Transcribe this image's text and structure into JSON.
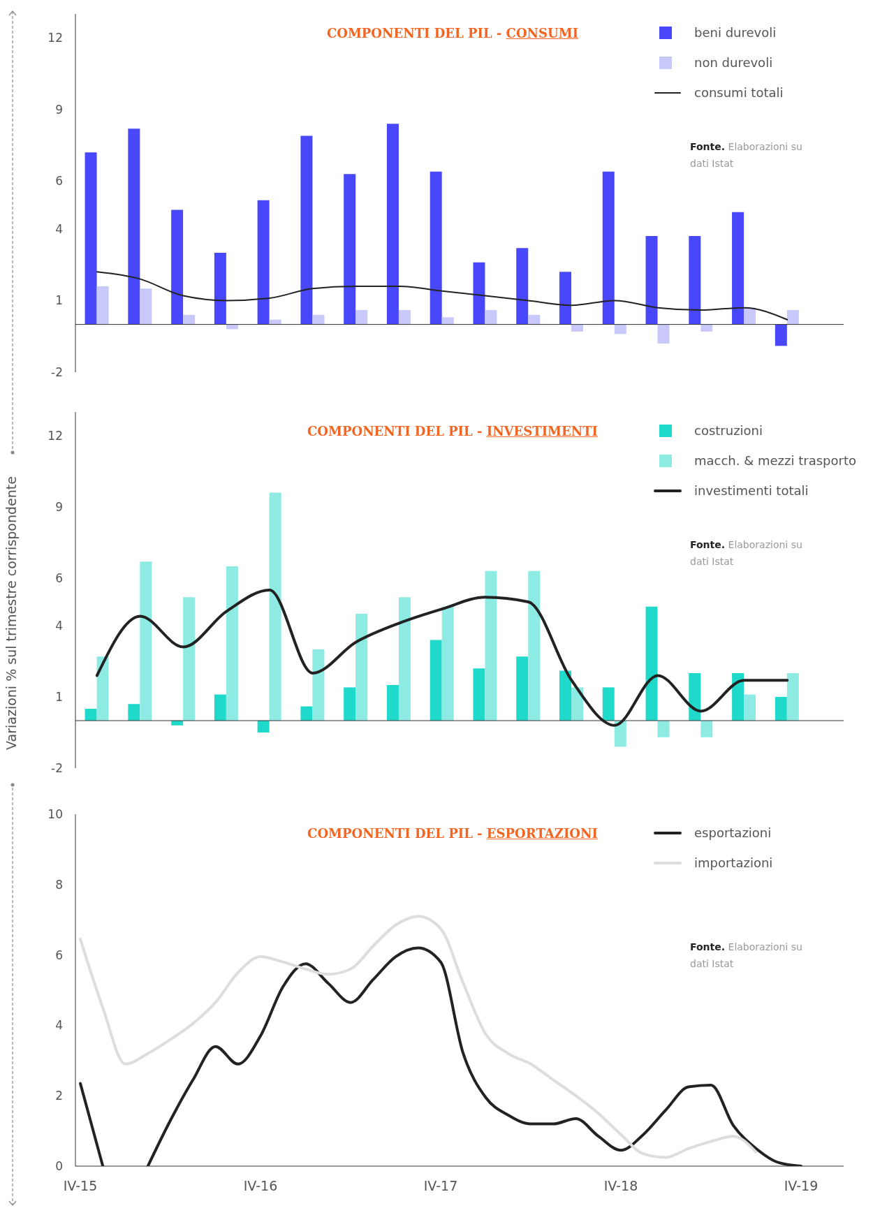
{
  "chart_data": [
    {
      "type": "bar",
      "title": "COMPONENTI DEL PIL - CONSUMI",
      "categories": [
        null,
        null,
        null,
        null,
        null,
        null,
        null,
        null,
        null,
        null,
        null,
        null,
        null,
        null,
        null,
        null,
        null
      ],
      "series": [
        {
          "name": "beni durevoli",
          "color": "#4848fa",
          "values": [
            7.2,
            8.2,
            4.8,
            3.0,
            5.2,
            7.9,
            6.3,
            8.4,
            6.4,
            2.6,
            3.2,
            2.2,
            6.4,
            3.7,
            3.7,
            4.7,
            -0.9
          ]
        },
        {
          "name": "non durevoli",
          "color": "#c8c8fa",
          "values": [
            1.6,
            1.5,
            0.4,
            -0.2,
            0.2,
            0.4,
            0.6,
            0.6,
            0.3,
            0.6,
            0.4,
            -0.3,
            -0.4,
            -0.8,
            -0.3,
            0.7,
            0.6
          ]
        },
        {
          "name": "consumi totali",
          "type": "line",
          "color": "#222222",
          "values": [
            2.2,
            1.9,
            1.2,
            1.0,
            1.1,
            1.5,
            1.6,
            1.6,
            1.4,
            1.2,
            1.0,
            0.8,
            1.0,
            0.7,
            0.6,
            0.7,
            0.2
          ]
        }
      ],
      "ylim": [
        -2,
        13
      ],
      "yticks": [
        -2,
        1,
        4,
        6,
        9,
        12
      ],
      "ref_lines": [
        {
          "axis": "y",
          "value": 0
        }
      ],
      "tick_labels": "y",
      "legend": "top right",
      "annotations": [
        "Fonte. Elaborazioni su dati Istat"
      ]
    },
    {
      "type": "bar",
      "title": "COMPONENTI DEL PIL - INVESTIMENTI",
      "ylabel": "Variazioni % sul trimestre corrispondente",
      "categories": [
        null,
        null,
        null,
        null,
        null,
        null,
        null,
        null,
        null,
        null,
        null,
        null,
        null,
        null,
        null,
        null,
        null
      ],
      "series": [
        {
          "name": "costruzioni",
          "color": "#1fdacb",
          "values": [
            0.5,
            0.7,
            -0.2,
            1.1,
            -0.5,
            0.6,
            1.4,
            1.5,
            3.4,
            2.2,
            2.7,
            2.1,
            1.4,
            4.8,
            2.0,
            2.0,
            1.0
          ]
        },
        {
          "name": "macch. & mezzi trasporto",
          "color": "#8eebe4",
          "values": [
            2.7,
            6.7,
            5.2,
            6.5,
            9.6,
            3.0,
            4.5,
            5.2,
            4.8,
            6.3,
            6.3,
            1.4,
            -1.1,
            -0.7,
            -0.7,
            1.1,
            2.0
          ]
        },
        {
          "name": "investimenti totali",
          "type": "line",
          "color": "#222222",
          "values": [
            1.9,
            4.4,
            3.1,
            4.6,
            5.5,
            2.0,
            3.3,
            4.1,
            4.7,
            5.2,
            5.0,
            1.7,
            -0.2,
            1.9,
            0.4,
            1.7,
            1.7
          ]
        }
      ],
      "ylim": [
        -2,
        13
      ],
      "yticks": [
        -2,
        1,
        4,
        6,
        9,
        12
      ],
      "ref_lines": [
        {
          "axis": "y",
          "value": 0
        }
      ],
      "tick_labels": "y",
      "legend": "top right",
      "annotations": [
        "Fonte. Elaborazioni su dati Istat"
      ]
    },
    {
      "type": "line",
      "title": "COMPONENTI DEL PIL - ESPORTAZIONI",
      "categories": [
        "IV-15",
        null,
        null,
        null,
        null,
        null,
        null,
        null,
        "IV-16",
        null,
        null,
        null,
        null,
        null,
        null,
        null,
        "IV-17",
        null,
        null,
        null,
        null,
        null,
        null,
        null,
        "IV-18",
        null,
        null,
        null,
        null,
        null,
        null,
        null,
        "IV-19"
      ],
      "series": [
        {
          "name": "esportazioni",
          "color": "#222222",
          "values": [
            2.35,
            0,
            null,
            0,
            1.3,
            2.45,
            3.4,
            2.9,
            3.7,
            5.1,
            5.75,
            5.2,
            4.65,
            5.3,
            5.95,
            6.2,
            5.8,
            3.2,
            1.95,
            1.45,
            1.2,
            1.2,
            1.35,
            0.85,
            0.45,
            0.9,
            1.6,
            2.25,
            2.3,
            1.15,
            0.5,
            0.1,
            0
          ]
        },
        {
          "name": "importazioni",
          "color": "#dddddd",
          "values": [
            6.45,
            4.5,
            2.9,
            3.2,
            3.6,
            4.05,
            4.65,
            5.5,
            5.95,
            5.8,
            5.6,
            5.45,
            5.6,
            6.25,
            6.85,
            7.1,
            6.75,
            5.2,
            3.75,
            3.2,
            2.9,
            2.45,
            2.0,
            1.5,
            0.9,
            0.35,
            0.25,
            0.5,
            0.7,
            0.85,
            0.4,
            null,
            null
          ]
        }
      ],
      "ylim": [
        0,
        10
      ],
      "yticks": [
        0,
        2,
        4,
        6,
        8,
        10
      ],
      "legend": "top right",
      "marker": "none",
      "annotations": [
        "Fonte. Elaborazioni su dati Istat"
      ]
    }
  ]
}
